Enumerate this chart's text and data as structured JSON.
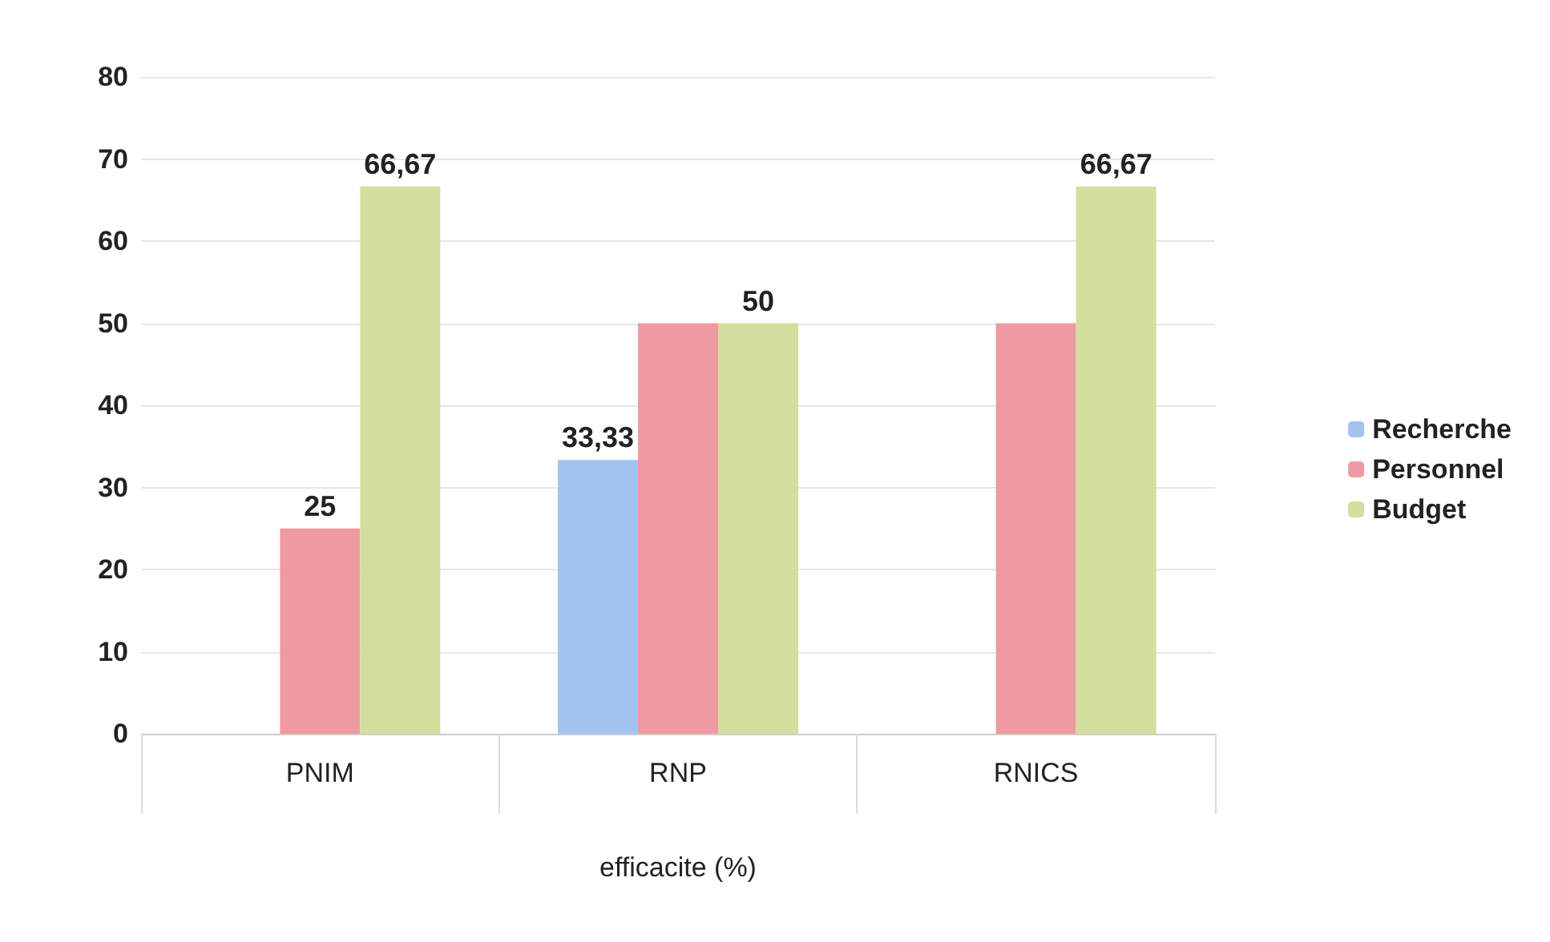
{
  "chart_data": {
    "type": "bar",
    "xlabel": "efficacite (%)",
    "categories": [
      "PNIM",
      "RNP",
      "RNICS"
    ],
    "series": [
      {
        "name": "Recherche",
        "color": "#a4c2ee",
        "values": [
          null,
          33.33,
          null
        ],
        "value_labels": [
          null,
          "33,33",
          null
        ]
      },
      {
        "name": "Personnel",
        "color": "#ee9aa0",
        "values": [
          25,
          50,
          50
        ],
        "value_labels": [
          "25",
          null,
          null
        ]
      },
      {
        "name": "Budget",
        "color": "#d3de9f",
        "values": [
          66.67,
          50,
          66.67
        ],
        "value_labels": [
          "66,67",
          "50",
          "66,67"
        ]
      }
    ],
    "ylim": [
      0,
      80
    ],
    "yticks": [
      0,
      10,
      20,
      30,
      40,
      50,
      60,
      70,
      80
    ],
    "grid": "y",
    "legend": "right"
  }
}
